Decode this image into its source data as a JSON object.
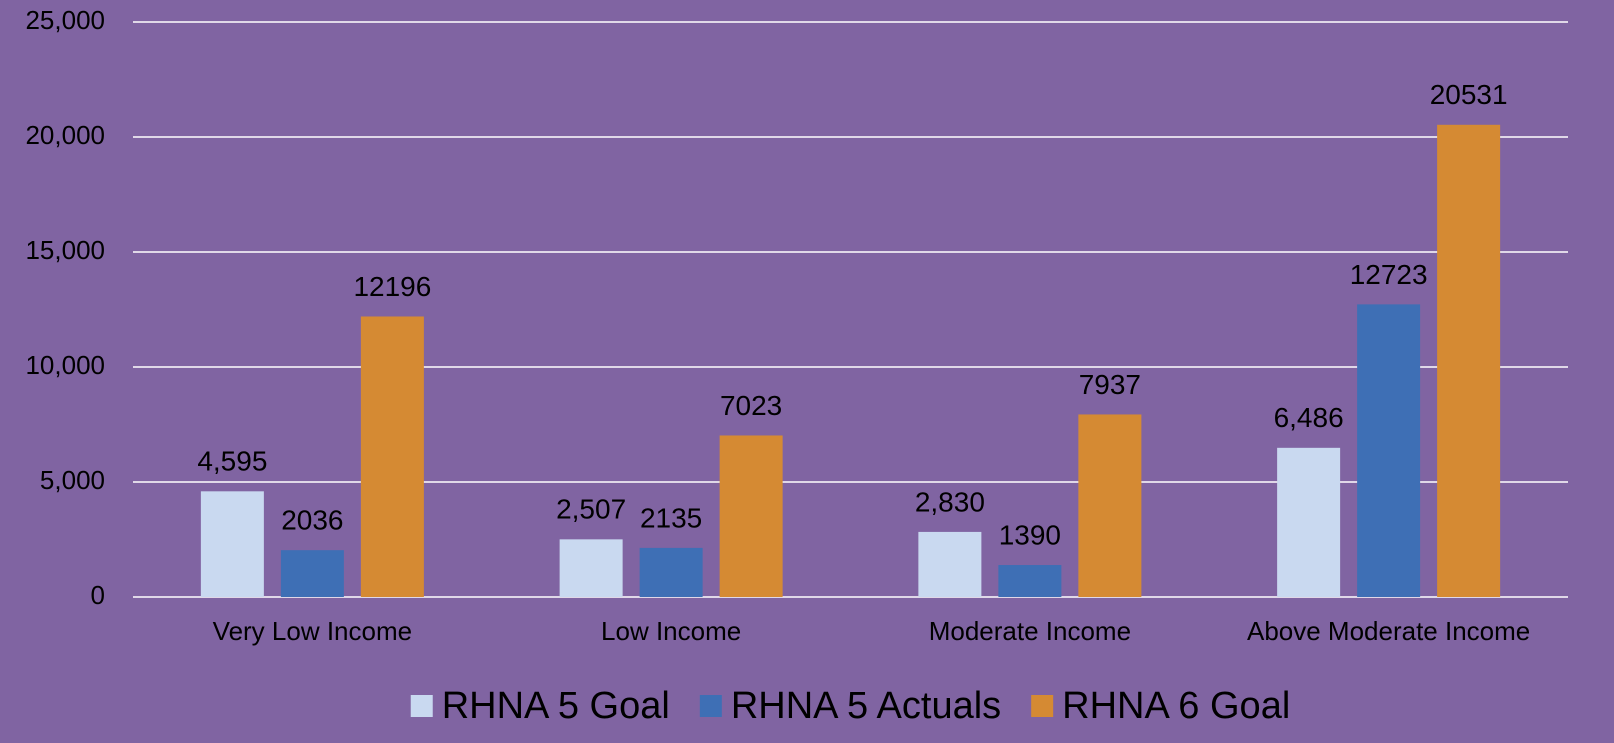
{
  "chart_data": {
    "type": "bar",
    "categories": [
      "Very Low Income",
      "Low Income",
      "Moderate Income",
      "Above Moderate Income"
    ],
    "series": [
      {
        "name": "RHNA 5 Goal",
        "color": "#c9d9f0",
        "values": [
          4595,
          2507,
          2830,
          6486
        ],
        "value_labels": [
          "4,595",
          "2,507",
          "2,830",
          "6,486"
        ]
      },
      {
        "name": "RHNA 5 Actuals",
        "color": "#3e6fb5",
        "values": [
          2036,
          2135,
          1390,
          12723
        ]
      },
      {
        "name": "RHNA 6 Goal",
        "color": "#d58a33",
        "values": [
          12196,
          7023,
          7937,
          20531
        ]
      }
    ],
    "ylim": [
      0,
      25000
    ],
    "yticks": [
      0,
      {
        "value": 5000,
        "label": "5,000"
      },
      {
        "value": 10000,
        "label": "10,000"
      },
      {
        "value": 15000,
        "label": "15,000"
      },
      {
        "value": 20000,
        "label": "20,000"
      },
      {
        "value": 25000,
        "label": "25,000"
      }
    ],
    "grid": true,
    "legend": "bottom"
  }
}
